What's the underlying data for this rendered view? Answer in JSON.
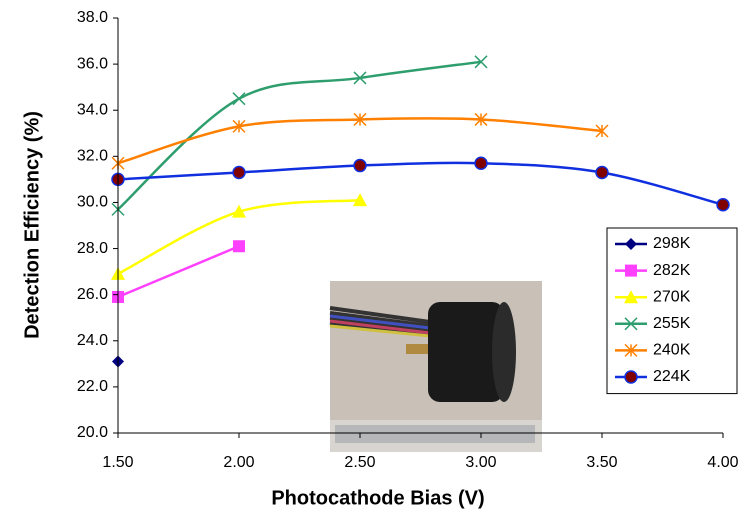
{
  "chart_data": {
    "type": "line",
    "y_label": "Detection Efficiency (%)",
    "x_label": "Photocathode Bias (V)",
    "xlim": [
      1.5,
      4.0
    ],
    "xticks": [
      {
        "value": 1.5,
        "label": "1.50"
      },
      {
        "value": 2.0,
        "label": "2.00"
      },
      {
        "value": 2.5,
        "label": "2.50"
      },
      {
        "value": 3.0,
        "label": "3.00"
      },
      {
        "value": 3.5,
        "label": "3.50"
      },
      {
        "value": 4.0,
        "label": "4.00"
      }
    ],
    "ylim": [
      20,
      38
    ],
    "yticks": [
      {
        "value": 20,
        "label": "20.0"
      },
      {
        "value": 22,
        "label": "22.0"
      },
      {
        "value": 24,
        "label": "24.0"
      },
      {
        "value": 26,
        "label": "26.0"
      },
      {
        "value": 28,
        "label": "28.0"
      },
      {
        "value": 30,
        "label": "30.0"
      },
      {
        "value": 32,
        "label": "32.0"
      },
      {
        "value": 34,
        "label": "34.0"
      },
      {
        "value": 36,
        "label": "36.0"
      },
      {
        "value": 38,
        "label": "38.0"
      }
    ],
    "grid": false,
    "legend": "right",
    "series": [
      {
        "name": "298K",
        "color": "#000080",
        "marker": "diamond",
        "x": [
          1.5
        ],
        "values": [
          23.1
        ]
      },
      {
        "name": "282K",
        "color": "#ff40ff",
        "marker": "square",
        "x": [
          1.5,
          2.0
        ],
        "values": [
          25.9,
          28.1
        ]
      },
      {
        "name": "270K",
        "color": "#ffff00",
        "marker": "triangle",
        "x": [
          1.5,
          2.0,
          2.5
        ],
        "values": [
          26.9,
          29.6,
          30.1
        ]
      },
      {
        "name": "255K",
        "color": "#2e9e6e",
        "marker": "x",
        "x": [
          1.5,
          2.0,
          2.5,
          3.0
        ],
        "values": [
          29.7,
          34.5,
          35.4,
          36.1
        ]
      },
      {
        "name": "240K",
        "color": "#ff8000",
        "marker": "star",
        "x": [
          1.5,
          2.0,
          2.5,
          3.0,
          3.5
        ],
        "values": [
          31.7,
          33.3,
          33.6,
          33.6,
          33.1
        ]
      },
      {
        "name": "224K",
        "color": "#1030e0",
        "marker": "circle",
        "x": [
          1.5,
          2.0,
          2.5,
          3.0,
          3.5,
          4.0
        ],
        "values": [
          31.0,
          31.3,
          31.6,
          31.7,
          31.3,
          29.9
        ]
      }
    ]
  }
}
